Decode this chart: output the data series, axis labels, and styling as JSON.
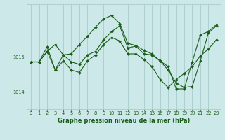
{
  "title": "Graphe pression niveau de la mer (hPa)",
  "bg_color": "#cce8e8",
  "grid_color": "#aacccc",
  "line_color": "#1a5c1a",
  "marker_color": "#1a5c1a",
  "xlim": [
    -0.5,
    23.5
  ],
  "ylim": [
    1013.5,
    1016.5
  ],
  "yticks": [
    1014,
    1015
  ],
  "xticks": [
    0,
    1,
    2,
    3,
    4,
    5,
    6,
    7,
    8,
    9,
    10,
    11,
    12,
    13,
    14,
    15,
    16,
    17,
    18,
    19,
    20,
    21,
    22,
    23
  ],
  "series": [
    [
      1014.85,
      1014.85,
      1015.15,
      1015.35,
      1015.05,
      1014.85,
      1014.78,
      1015.05,
      1015.15,
      1015.48,
      1015.72,
      1015.88,
      1015.25,
      1015.3,
      1015.08,
      1015.05,
      1014.88,
      1014.62,
      1014.25,
      1014.12,
      1014.15,
      1014.88,
      1015.68,
      1015.88
    ],
    [
      1014.85,
      1014.85,
      1015.28,
      1014.62,
      1015.05,
      1015.08,
      1015.35,
      1015.58,
      1015.85,
      1016.08,
      1016.18,
      1015.95,
      1015.38,
      1015.32,
      1015.18,
      1015.08,
      1014.88,
      1014.72,
      1014.08,
      1014.08,
      1014.85,
      1015.62,
      1015.72,
      1015.92
    ],
    [
      1014.85,
      1014.85,
      1015.15,
      1014.62,
      1014.88,
      1014.62,
      1014.55,
      1014.88,
      1015.05,
      1015.35,
      1015.55,
      1015.45,
      1015.08,
      1015.08,
      1014.92,
      1014.72,
      1014.35,
      1014.12,
      1014.35,
      1014.52,
      1014.72,
      1015.02,
      1015.22,
      1015.48
    ]
  ]
}
